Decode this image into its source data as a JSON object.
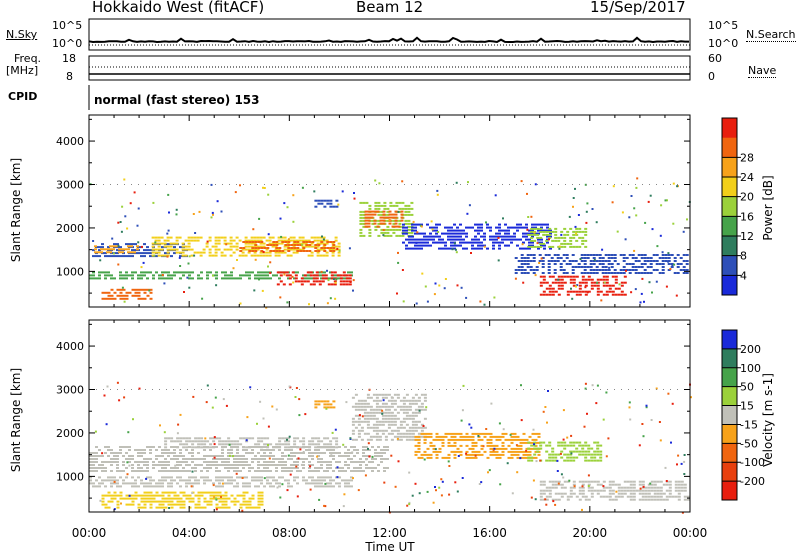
{
  "header": {
    "title": "Hokkaido West (fitACF)",
    "beam": "Beam 12",
    "date": "15/Sep/2017"
  },
  "strips": {
    "nsky_label": "N.Sky",
    "nsky_ticks": [
      "10^5",
      "10^0"
    ],
    "nsky_right_ticks": [
      "10^5",
      "10^0"
    ],
    "nsearch_label": "N.Search",
    "freq_label_1": "Freq.",
    "freq_label_2": "[MHz]",
    "freq_ticks": [
      "18",
      "8"
    ],
    "nave_ticks": [
      "60",
      "0"
    ],
    "nave_label": "Nave",
    "cpid_label": "CPID",
    "cpid_value": "normal (fast stereo) 153"
  },
  "chart_data": [
    {
      "type": "heatmap",
      "name": "power",
      "ylabel": "Slant Range [km]",
      "yticks": [
        1000,
        2000,
        3000,
        4000
      ],
      "ylim": [
        180,
        4600
      ],
      "xlim": [
        0,
        24
      ],
      "colorbar_label": "Power [dB]",
      "colorbar_ticks": [
        4,
        8,
        12,
        16,
        20,
        24,
        28
      ],
      "colorbar_colors": [
        "#1a2ad9",
        "#2e4fb8",
        "#2f7d5e",
        "#46a34a",
        "#9bd13a",
        "#f2cf1a",
        "#f7a21a",
        "#f0650f",
        "#e81e0e"
      ],
      "regions": [
        {
          "t0": 0.0,
          "t1": 4.0,
          "r0": 1300,
          "r1": 1650,
          "color": "#2e4fb8"
        },
        {
          "t0": 2.5,
          "t1": 10.0,
          "r0": 1350,
          "r1": 1800,
          "color": "#f2cf1a"
        },
        {
          "t0": 6.0,
          "t1": 9.8,
          "r0": 1400,
          "r1": 1700,
          "color": "#f0650f"
        },
        {
          "t0": 0.2,
          "t1": 2.0,
          "r0": 1400,
          "r1": 1600,
          "color": "#f7a21a"
        },
        {
          "t0": 0.0,
          "t1": 10.5,
          "r0": 800,
          "r1": 1000,
          "color": "#46a34a"
        },
        {
          "t0": 7.5,
          "t1": 10.5,
          "r0": 650,
          "r1": 1000,
          "color": "#e81e0e"
        },
        {
          "t0": 0.5,
          "t1": 2.5,
          "r0": 350,
          "r1": 600,
          "color": "#f0650f"
        },
        {
          "t0": 10.8,
          "t1": 13.0,
          "r0": 1800,
          "r1": 2600,
          "color": "#9bd13a"
        },
        {
          "t0": 11.0,
          "t1": 12.6,
          "r0": 2000,
          "r1": 2400,
          "color": "#f0650f"
        },
        {
          "t0": 12.5,
          "t1": 18.5,
          "r0": 1500,
          "r1": 2100,
          "color": "#1a2ad9"
        },
        {
          "t0": 17.5,
          "t1": 20.0,
          "r0": 1500,
          "r1": 2000,
          "color": "#9bd13a"
        },
        {
          "t0": 18.0,
          "t1": 21.5,
          "r0": 400,
          "r1": 900,
          "color": "#e81e0e"
        },
        {
          "t0": 17.0,
          "t1": 24.0,
          "r0": 950,
          "r1": 1400,
          "color": "#2e4fb8"
        },
        {
          "t0": 9.0,
          "t1": 10.0,
          "r0": 2450,
          "r1": 2650,
          "color": "#2e4fb8"
        }
      ]
    },
    {
      "type": "heatmap",
      "name": "velocity",
      "ylabel": "Slant Range [km]",
      "yticks": [
        1000,
        2000,
        3000,
        4000
      ],
      "ylim": [
        180,
        4600
      ],
      "xlim": [
        0,
        24
      ],
      "colorbar_label": "Velocity [m s-1]",
      "colorbar_ticks": [
        200,
        100,
        50,
        15,
        -15,
        -50,
        -100,
        -200
      ],
      "colorbar_colors": [
        "#1a2ad9",
        "#2f7d5e",
        "#46a34a",
        "#9bd13a",
        "#c0c0b8",
        "#f7a21a",
        "#f0650f",
        "#e8400e",
        "#e81e0e"
      ],
      "regions": [
        {
          "t0": 0.0,
          "t1": 12.0,
          "r0": 1100,
          "r1": 1700,
          "color": "#c0c0b8"
        },
        {
          "t0": 3.0,
          "t1": 10.0,
          "r0": 1600,
          "r1": 1900,
          "color": "#c0c0b8"
        },
        {
          "t0": 0.0,
          "t1": 10.5,
          "r0": 700,
          "r1": 1000,
          "color": "#c0c0b8"
        },
        {
          "t0": 10.5,
          "t1": 13.5,
          "r0": 1800,
          "r1": 2900,
          "color": "#c0c0b8"
        },
        {
          "t0": 13.0,
          "t1": 18.0,
          "r0": 1400,
          "r1": 2000,
          "color": "#f7a21a"
        },
        {
          "t0": 17.5,
          "t1": 20.5,
          "r0": 1300,
          "r1": 1800,
          "color": "#9bd13a"
        },
        {
          "t0": 18.0,
          "t1": 24.0,
          "r0": 400,
          "r1": 900,
          "color": "#c0c0b8"
        },
        {
          "t0": 9.0,
          "t1": 9.8,
          "r0": 2550,
          "r1": 2750,
          "color": "#f7a21a"
        },
        {
          "t0": 0.5,
          "t1": 7.0,
          "r0": 250,
          "r1": 650,
          "color": "#f2cf1a"
        }
      ]
    }
  ],
  "xaxis": {
    "label": "Time UT",
    "ticks": [
      "00:00",
      "04:00",
      "08:00",
      "12:00",
      "16:00",
      "20:00",
      "00:00"
    ]
  }
}
